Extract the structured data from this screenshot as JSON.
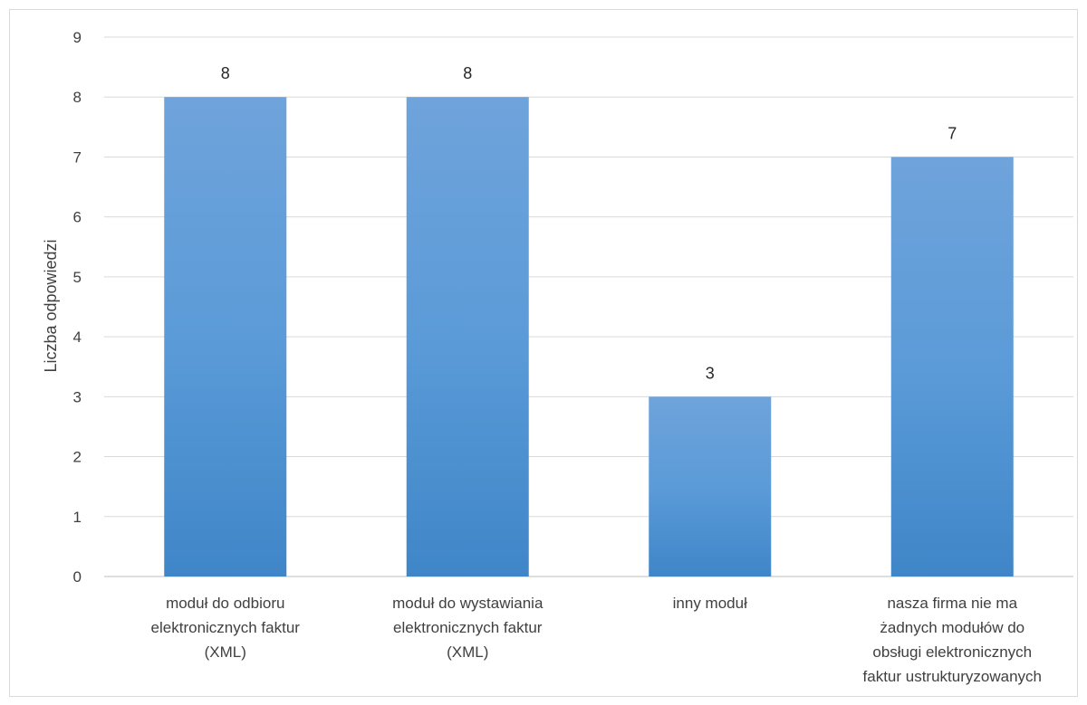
{
  "chart_data": {
    "type": "bar",
    "title": "",
    "xlabel": "",
    "ylabel": "Liczba odpowiedzi",
    "ylim": [
      0,
      9
    ],
    "yticks": [
      0,
      1,
      2,
      3,
      4,
      5,
      6,
      7,
      8,
      9
    ],
    "grid": true,
    "legend": "none",
    "categories": [
      [
        "moduł do odbioru",
        "elektronicznych faktur",
        "(XML)"
      ],
      [
        "moduł do wystawiania",
        "elektronicznych faktur",
        "(XML)"
      ],
      [
        "inny moduł"
      ],
      [
        "nasza firma nie ma",
        "żadnych modułów do",
        "obsługi elektronicznych",
        "faktur ustrukturyzowanych"
      ]
    ],
    "values": [
      8,
      8,
      3,
      7
    ],
    "data_labels": [
      "8",
      "8",
      "3",
      "7"
    ],
    "colors": {
      "bar_top": "#6fa3db",
      "bar_bottom": "#3f86c8",
      "grid": "#d9d9d9",
      "axis": "#bfbfbf"
    }
  }
}
